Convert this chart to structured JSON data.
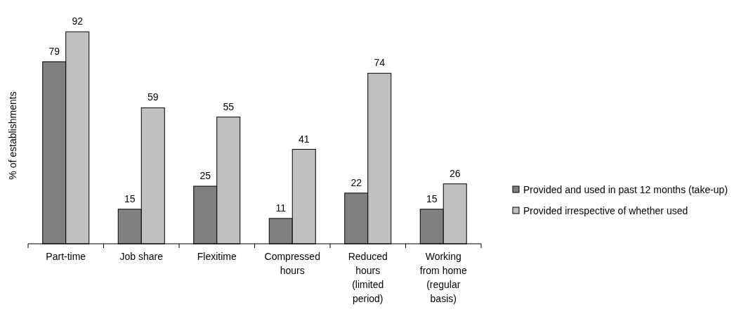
{
  "chart_data": {
    "type": "bar",
    "ylabel": "% of establishments",
    "categories": [
      "Part-time",
      "Job share",
      "Flexitime",
      "Compressed hours",
      "Reduced hours (limited period)",
      "Working from home (regular basis)"
    ],
    "series": [
      {
        "name": "Provided and used in past 12 months (take-up)",
        "color": "#808080",
        "values": [
          79,
          15,
          25,
          11,
          22,
          15
        ]
      },
      {
        "name": "Provided irrespective of whether used",
        "color": "#c0c0c0",
        "values": [
          92,
          59,
          55,
          41,
          74,
          26
        ]
      }
    ],
    "data_labels": true,
    "legend": "right"
  }
}
